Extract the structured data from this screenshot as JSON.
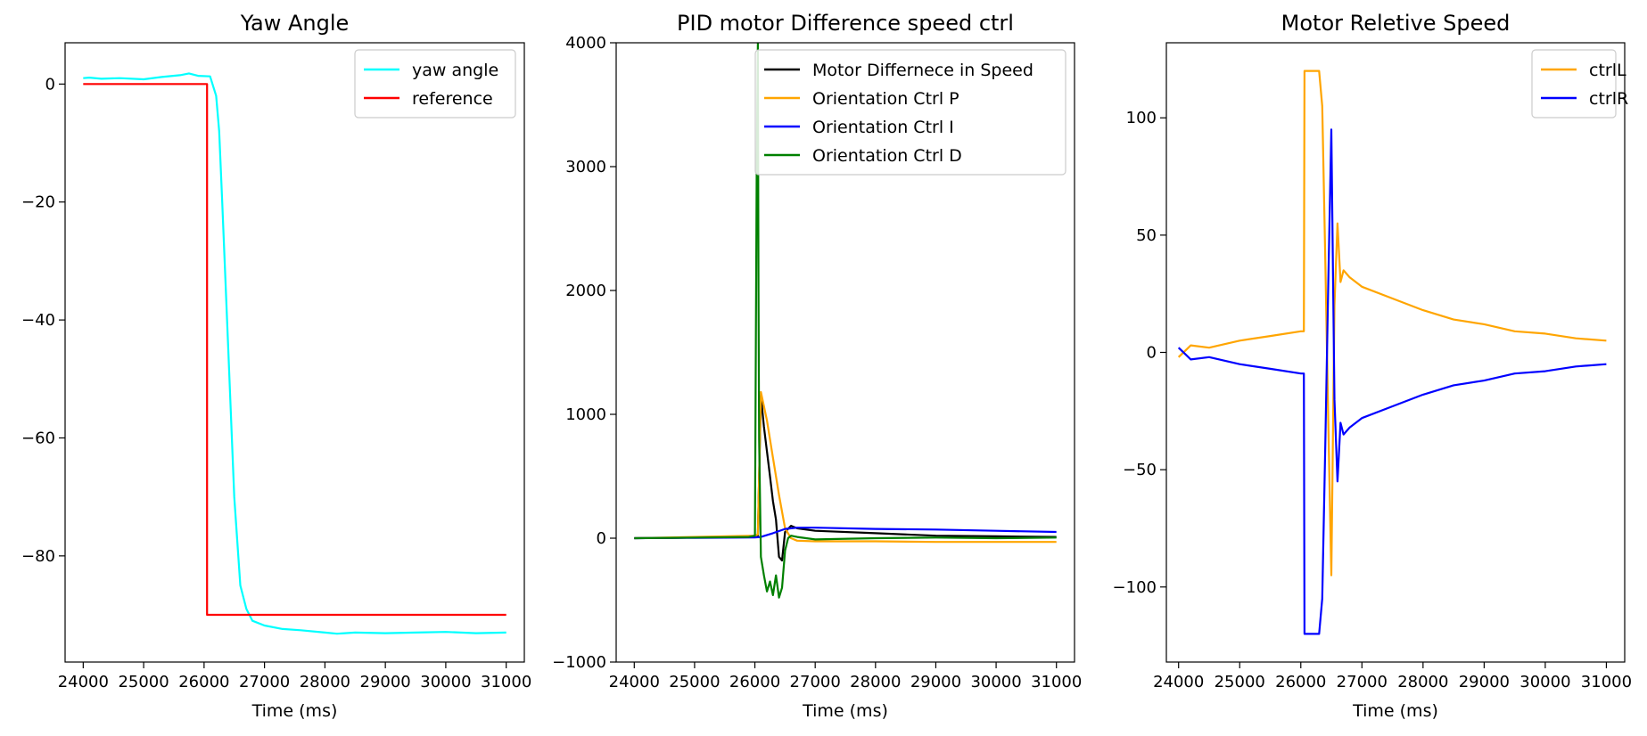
{
  "chart_data": [
    {
      "type": "line",
      "title": "Yaw Angle",
      "xlabel": "Time (ms)",
      "ylabel": "",
      "xlim": [
        23700,
        31300
      ],
      "ylim": [
        -98,
        7
      ],
      "xticks": [
        24000,
        25000,
        26000,
        27000,
        28000,
        29000,
        30000,
        31000
      ],
      "xtick_labels": [
        "24000",
        "25000",
        "26000",
        "27000",
        "28000",
        "29000",
        "30000",
        "31000"
      ],
      "yticks": [
        0,
        -20,
        -40,
        -60,
        -80
      ],
      "ytick_labels": [
        "0",
        "−20",
        "−40",
        "−60",
        "−80"
      ],
      "legend_position": "top-right",
      "grid": false,
      "series": [
        {
          "name": "yaw angle",
          "color": "#00ffff",
          "x": [
            24000,
            24100,
            24300,
            24600,
            25000,
            25300,
            25600,
            25750,
            25900,
            26100,
            26200,
            26250,
            26300,
            26400,
            26500,
            26600,
            26700,
            26800,
            27000,
            27300,
            27600,
            28000,
            28200,
            28500,
            29000,
            29500,
            30000,
            30500,
            31000
          ],
          "y": [
            1,
            1.1,
            0.9,
            1,
            0.8,
            1.2,
            1.5,
            1.8,
            1.4,
            1.3,
            -2,
            -8,
            -20,
            -45,
            -70,
            -85,
            -89,
            -91,
            -91.8,
            -92.4,
            -92.6,
            -93,
            -93.2,
            -93,
            -93.1,
            -93,
            -92.9,
            -93.1,
            -93
          ]
        },
        {
          "name": "reference",
          "color": "#ff0000",
          "x": [
            24000,
            26050,
            26050,
            31000
          ],
          "y": [
            0,
            0,
            -90,
            -90
          ]
        }
      ]
    },
    {
      "type": "line",
      "title": "PID motor Difference speed ctrl",
      "xlabel": "Time (ms)",
      "ylabel": "",
      "xlim": [
        23700,
        31300
      ],
      "ylim": [
        -1000,
        4000
      ],
      "xticks": [
        24000,
        25000,
        26000,
        27000,
        28000,
        29000,
        30000,
        31000
      ],
      "xtick_labels": [
        "24000",
        "25000",
        "26000",
        "27000",
        "28000",
        "29000",
        "30000",
        "31000"
      ],
      "yticks": [
        4000,
        3000,
        2000,
        1000,
        0,
        -1000
      ],
      "ytick_labels": [
        "4000",
        "3000",
        "2000",
        "1000",
        "0",
        "−1000"
      ],
      "legend_position": "top-right",
      "grid": false,
      "series": [
        {
          "name": "Motor Differnece in Speed",
          "color": "#000000",
          "x": [
            24000,
            25000,
            26000,
            26050,
            26100,
            26150,
            26200,
            26250,
            26300,
            26350,
            26400,
            26450,
            26500,
            26600,
            26700,
            27000,
            28000,
            29000,
            30000,
            31000
          ],
          "y": [
            0,
            5,
            10,
            20,
            1150,
            900,
            700,
            500,
            300,
            150,
            -150,
            -180,
            50,
            100,
            80,
            60,
            40,
            20,
            15,
            10
          ]
        },
        {
          "name": "Orientation Ctrl P",
          "color": "#ffa500",
          "x": [
            24000,
            25000,
            26000,
            26050,
            26100,
            26200,
            26300,
            26400,
            26500,
            26600,
            26700,
            27000,
            28000,
            29000,
            30000,
            31000
          ],
          "y": [
            0,
            10,
            20,
            30,
            1180,
            950,
            650,
            350,
            80,
            0,
            -20,
            -25,
            -25,
            -30,
            -30,
            -30
          ]
        },
        {
          "name": "Orientation Ctrl I",
          "color": "#0000ff",
          "x": [
            24000,
            25000,
            26000,
            26100,
            26300,
            26500,
            26700,
            27000,
            28000,
            29000,
            30000,
            31000
          ],
          "y": [
            0,
            3,
            6,
            10,
            40,
            75,
            85,
            85,
            75,
            70,
            60,
            50
          ]
        },
        {
          "name": "Orientation Ctrl D",
          "color": "#008000",
          "x": [
            24000,
            25000,
            25900,
            26000,
            26030,
            26050,
            26060,
            26070,
            26100,
            26150,
            26200,
            26250,
            26300,
            26350,
            26400,
            26450,
            26500,
            26550,
            26600,
            26700,
            27000,
            28000,
            29000,
            30000,
            31000
          ],
          "y": [
            0,
            5,
            10,
            20,
            3000,
            4000,
            2000,
            800,
            -150,
            -300,
            -430,
            -350,
            -460,
            -300,
            -480,
            -400,
            -100,
            0,
            20,
            10,
            -10,
            0,
            5,
            0,
            5
          ]
        }
      ]
    },
    {
      "type": "line",
      "title": "Motor Reletive Speed",
      "xlabel": "Time (ms)",
      "ylabel": "",
      "xlim": [
        23800,
        31300
      ],
      "ylim": [
        -132,
        132
      ],
      "xticks": [
        24000,
        25000,
        26000,
        27000,
        28000,
        29000,
        30000,
        31000
      ],
      "xtick_labels": [
        "24000",
        "25000",
        "26000",
        "27000",
        "28000",
        "29000",
        "30000",
        "31000"
      ],
      "yticks": [
        100,
        50,
        0,
        -50,
        -100
      ],
      "ytick_labels": [
        "100",
        "50",
        "0",
        "−50",
        "−100"
      ],
      "legend_position": "top-right",
      "grid": false,
      "series": [
        {
          "name": "ctrlL",
          "color": "#ffa500",
          "x": [
            24000,
            24200,
            24500,
            25000,
            25500,
            26000,
            26050,
            26060,
            26300,
            26350,
            26400,
            26450,
            26500,
            26550,
            26600,
            26650,
            26700,
            26800,
            27000,
            27500,
            28000,
            28500,
            29000,
            29500,
            30000,
            30500,
            31000
          ],
          "y": [
            -2,
            3,
            2,
            5,
            7,
            9,
            9,
            120,
            120,
            105,
            40,
            -30,
            -95,
            20,
            55,
            30,
            35,
            32,
            28,
            23,
            18,
            14,
            12,
            9,
            8,
            6,
            5
          ]
        },
        {
          "name": "ctrlR",
          "color": "#0000ff",
          "x": [
            24000,
            24200,
            24500,
            25000,
            25500,
            26000,
            26050,
            26060,
            26300,
            26350,
            26400,
            26450,
            26500,
            26550,
            26600,
            26650,
            26700,
            26800,
            27000,
            27500,
            28000,
            28500,
            29000,
            29500,
            30000,
            30500,
            31000
          ],
          "y": [
            2,
            -3,
            -2,
            -5,
            -7,
            -9,
            -9,
            -120,
            -120,
            -105,
            -40,
            30,
            95,
            -20,
            -55,
            -30,
            -35,
            -32,
            -28,
            -23,
            -18,
            -14,
            -12,
            -9,
            -8,
            -6,
            -5
          ]
        }
      ]
    }
  ]
}
